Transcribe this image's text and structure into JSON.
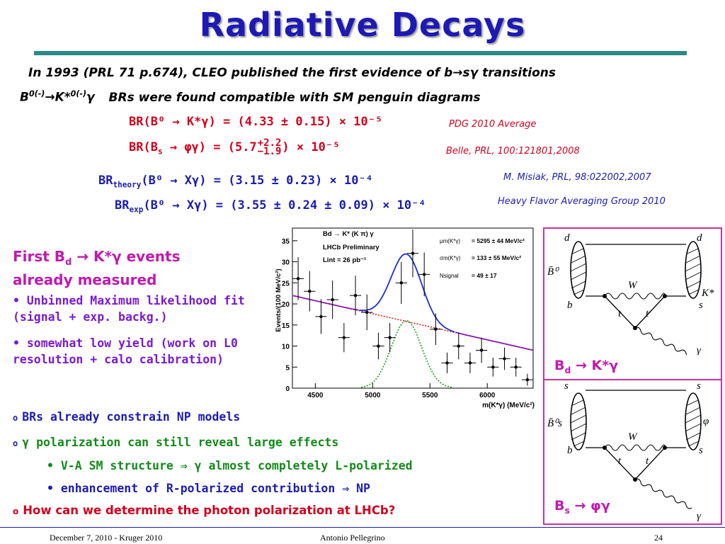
{
  "slide": {
    "title": "Radiative Decays",
    "headline": "In 1993 (PRL 71 p.674), CLEO published the first evidence of b",
    "headline_arrow": "→",
    "headline_tail": "sγ transitions",
    "subline_lead": "B",
    "subline_sup": "0(-)",
    "subline_mid": "→K*",
    "subline_sup2": "0(-)",
    "subline_gamma": "γ",
    "subline_tail": "BRs were found compatible with SM penguin diagrams",
    "br1": {
      "text": "BR(B⁰ → K*γ) = (4.33 ± 0.15) × 10⁻⁵",
      "ref": "PDG 2010 Average"
    },
    "br2": {
      "lead": "BR(B",
      "sub": "s",
      "mid": " → φγ)  = (5.7",
      "up": "+2.2",
      "down": "−1.9",
      "tail": ") × 10⁻⁵",
      "ref": "Belle, PRL, 100:121801,2008"
    },
    "br3": {
      "lead": "BR",
      "sub": "theory",
      "tail": "(B⁰ → Xγ) = (3.15 ± 0.23) × 10⁻⁴",
      "ref": "M. Misiak, PRL, 98:022002,2007"
    },
    "br4": {
      "lead": "BR",
      "sub": "exp",
      "tail": "(B⁰ → Xγ) = (3.55 ± 0.24 ± 0.09) × 10⁻⁴",
      "ref": "Heavy Flavor Averaging Group 2010"
    },
    "left_head_1": "First B",
    "left_head_sub": "d",
    "left_head_2": " → K*γ events",
    "left_head_3": "already measured",
    "left_b1": "• Unbinned Maximum likelihood fit (signal + exp. backg.)",
    "left_b2": "• somewhat low yield (work on L0 resolution + calo calibration)",
    "bullets": [
      {
        "mark": "o",
        "text": "BRs already constrain NP models",
        "color": "#1c1cb0"
      },
      {
        "mark": "o",
        "text": "γ polarization can still reveal large effects",
        "color": "#138a1a"
      }
    ],
    "sub_bullets": [
      "• V-A SM structure ⇒ γ almost completely L-polarized",
      "• enhancement of R-polarized contribution ⇒ NP"
    ],
    "question": "How can we determine the photon polarization at LHCb?",
    "question_mark": "o",
    "footer_left": "December 7, 2010 - Kruger 2010",
    "footer_center": "Antonio Pellegrino",
    "footer_right": "24"
  },
  "plot": {
    "legend_decay": "Bd → K* (K π) γ",
    "legend_exp": "LHCb Preliminary",
    "legend_lumi": "Lint = 26 pb⁻¹",
    "mu_label": "μm(K*γ)",
    "mu_value": "= 5295 ± 44 MeV/c²",
    "sigma_label": "σm(K*γ)",
    "sigma_value": "= 133 ± 55 MeV/c²",
    "nsig_label": "Nsignal",
    "nsig_value": "= 49 ± 17",
    "xlabel": "m(K*γ) (MeV/c²)",
    "ylabel": "Events/(100 MeV/c²)",
    "xticks": [
      "4500",
      "5000",
      "5500",
      "6000"
    ],
    "yticks": [
      "0",
      "5",
      "10",
      "15",
      "20",
      "25",
      "30",
      "35"
    ]
  },
  "chart_data": {
    "type": "scatter",
    "title": "",
    "xlabel": "m(K*γ) (MeV/c²)",
    "ylabel": "Events/(100 MeV/c²)",
    "xlim": [
      4300,
      6400
    ],
    "ylim": [
      0,
      38
    ],
    "series": [
      {
        "x": [
          4350,
          4450,
          4550,
          4650,
          4750,
          4850,
          4950,
          5050,
          5150,
          5250,
          5350,
          5450,
          5550,
          5650,
          5750,
          5850,
          5950,
          6050,
          6150,
          6250,
          6350
        ],
        "values": [
          26,
          23,
          17,
          21,
          12,
          22,
          18,
          10,
          12,
          25,
          32,
          27,
          14,
          6,
          10,
          6,
          9,
          5,
          7,
          5,
          2
        ]
      },
      {
        "x": [
          4300,
          5600,
          6400
        ],
        "values": [
          22,
          12,
          8
        ]
      },
      {
        "x": [
          4300,
          6400
        ],
        "values": [
          22,
          9
        ]
      },
      {
        "x": [
          4900,
          5295,
          5700
        ],
        "values": [
          0,
          16,
          0
        ]
      }
    ]
  },
  "feynman": {
    "top": {
      "q_top_left": "d",
      "q_top_right": "d",
      "meson_left": "B̄⁰",
      "meson_right": "K*",
      "w": "W",
      "b": "b",
      "t1": "t",
      "t2": "t",
      "s": "s",
      "gamma": "γ",
      "caption_1": "B",
      "caption_sub": "d",
      "caption_2": " → K*γ"
    },
    "bottom": {
      "q_top_left": "s",
      "q_top_right": "s",
      "meson_left": "B̄⁰s",
      "meson_right": "φ",
      "w": "W",
      "b": "b",
      "t1": "t",
      "t2": "t",
      "s": "s",
      "gamma": "γ",
      "caption_1": "B",
      "caption_sub": "s",
      "caption_2": " → φγ"
    }
  }
}
